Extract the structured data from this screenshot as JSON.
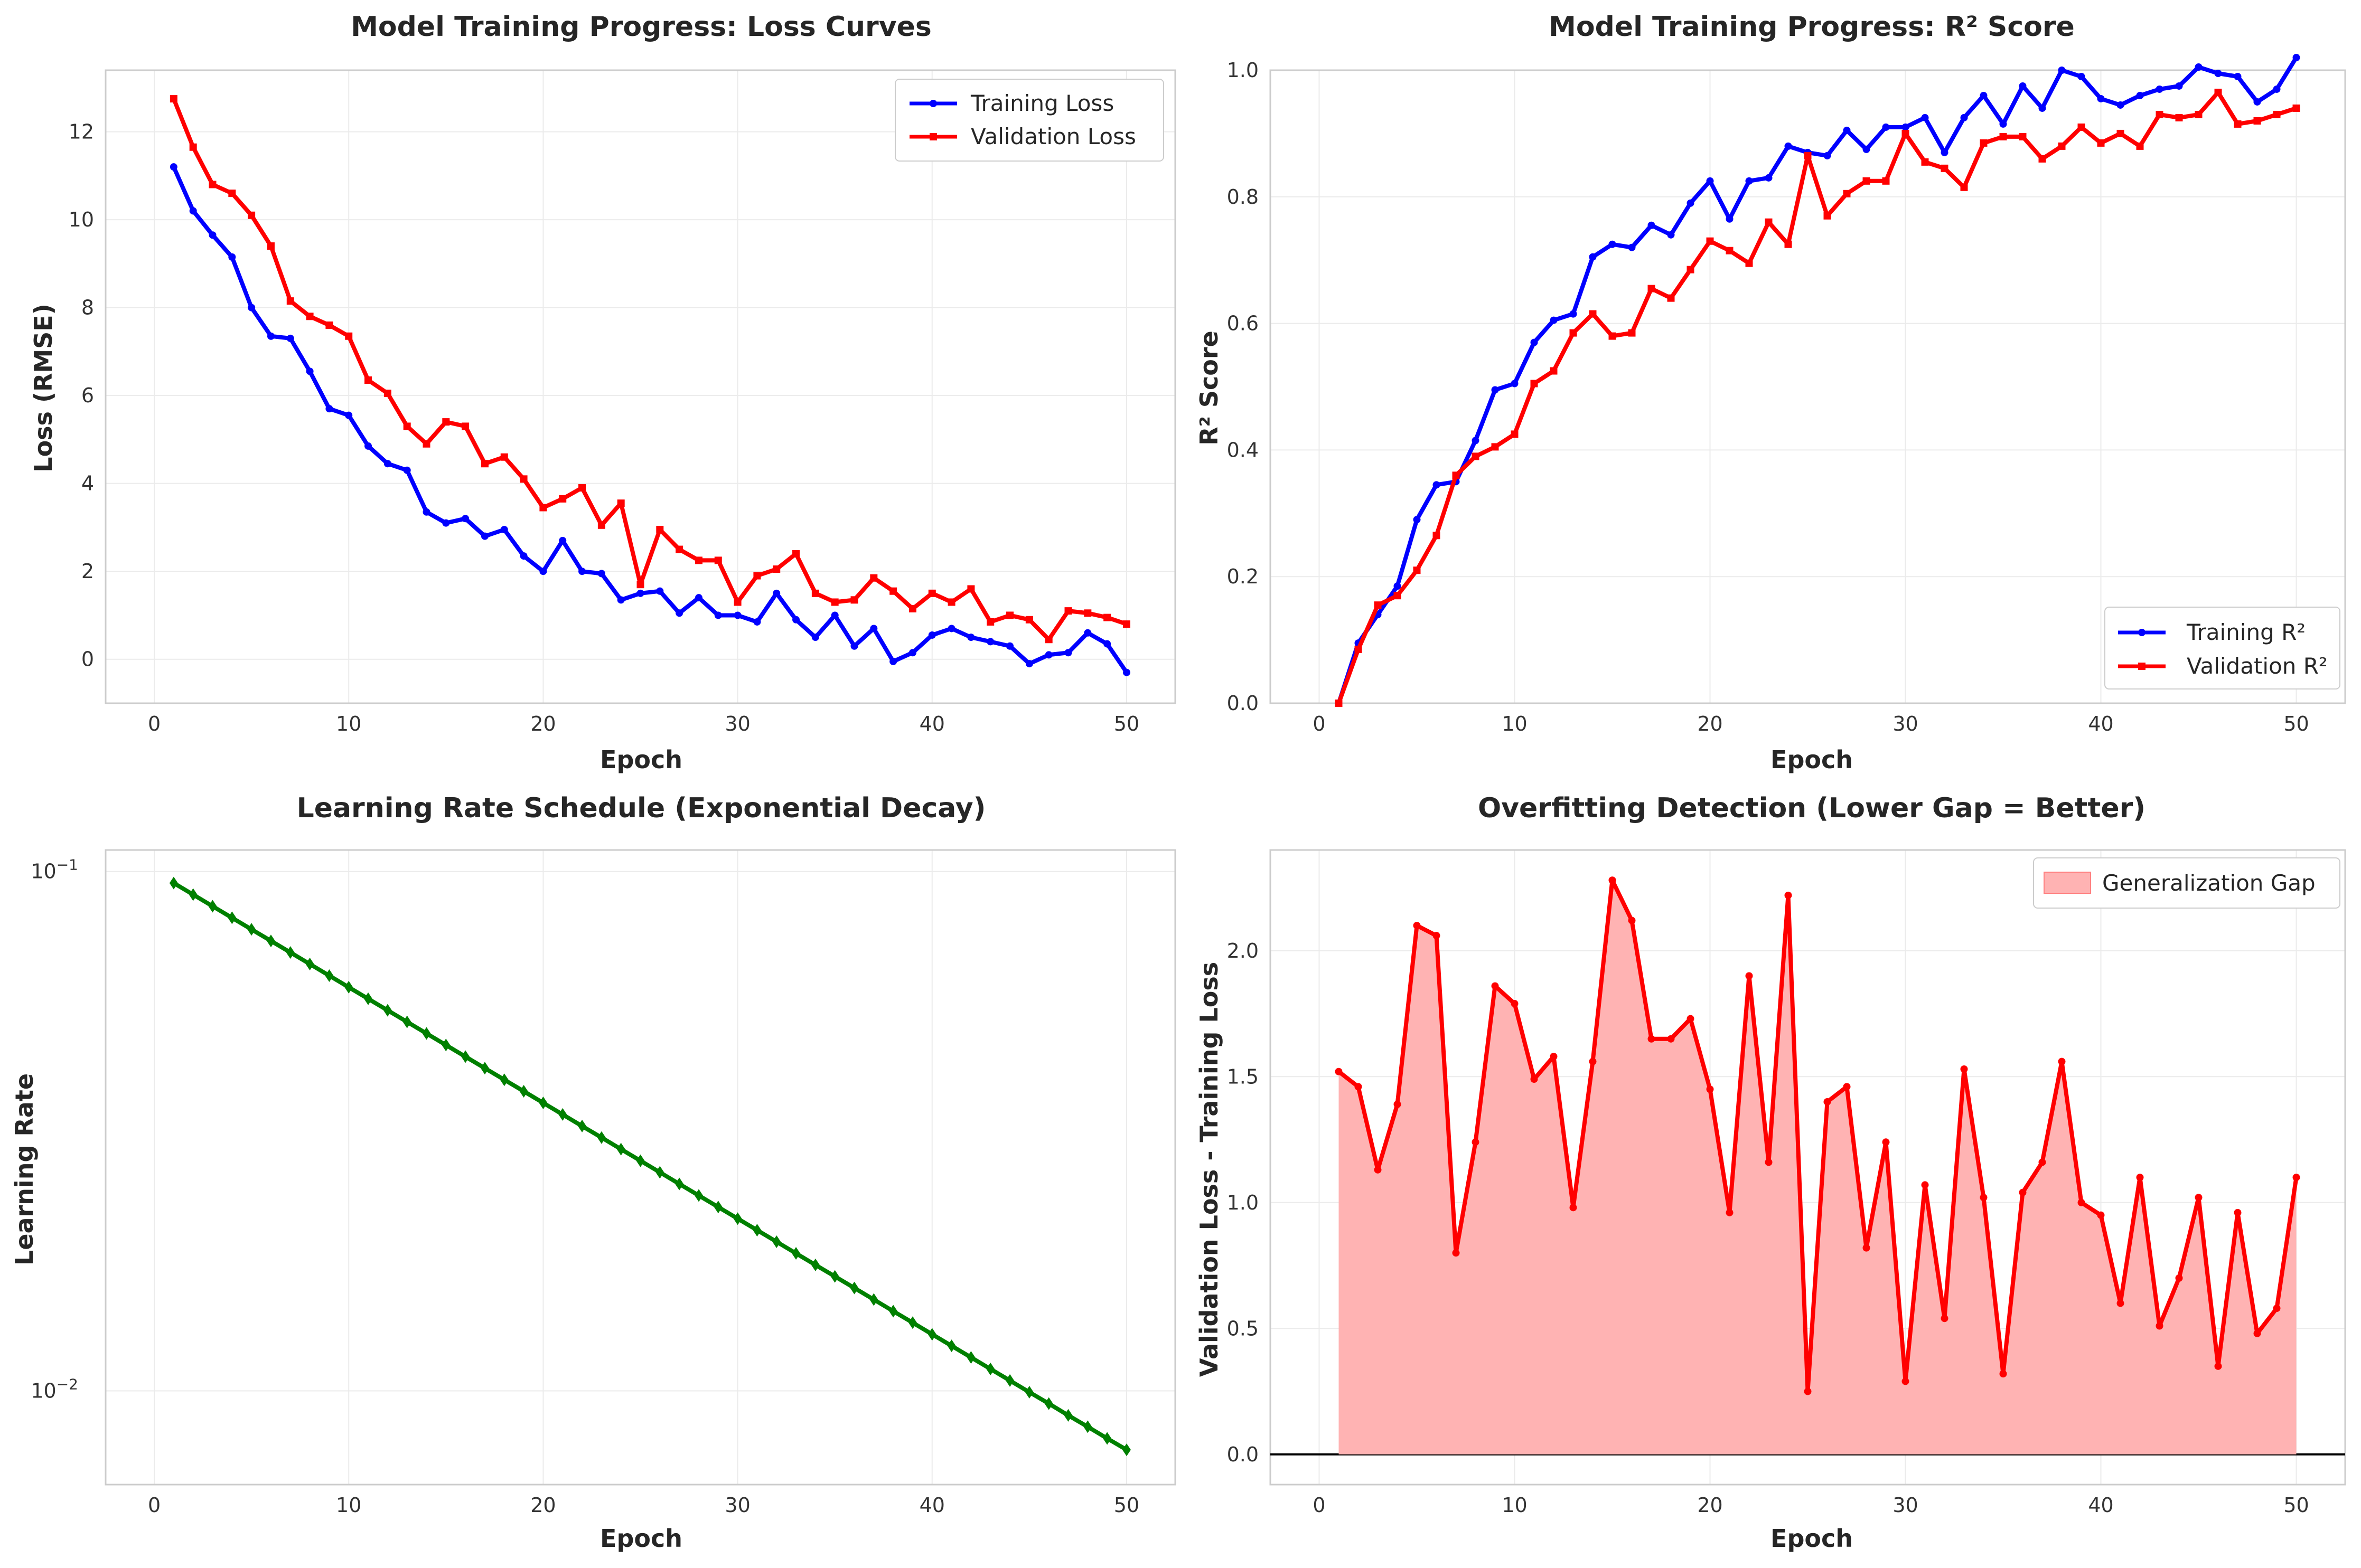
{
  "figure": {
    "background": "#ffffff",
    "grid_color": "#ebebeb",
    "spine_color": "#cccccc"
  },
  "chart_data": [
    {
      "type": "line",
      "title": "Model Training Progress: Loss Curves",
      "xlabel": "Epoch",
      "ylabel": "Loss (RMSE)",
      "xlim": [
        -2.5,
        52.5
      ],
      "ylim": [
        -1,
        13.4
      ],
      "xticks": [
        0,
        10,
        20,
        30,
        40,
        50
      ],
      "yticks": [
        0,
        2,
        4,
        6,
        8,
        10,
        12
      ],
      "grid": true,
      "legend": "top-right",
      "x": [
        1,
        2,
        3,
        4,
        5,
        6,
        7,
        8,
        9,
        10,
        11,
        12,
        13,
        14,
        15,
        16,
        17,
        18,
        19,
        20,
        21,
        22,
        23,
        24,
        25,
        26,
        27,
        28,
        29,
        30,
        31,
        32,
        33,
        34,
        35,
        36,
        37,
        38,
        39,
        40,
        41,
        42,
        43,
        44,
        45,
        46,
        47,
        48,
        49,
        50
      ],
      "series": [
        {
          "name": "Training Loss",
          "color": "#0000ff",
          "marker": "circle",
          "values": [
            11.2,
            10.2,
            9.65,
            9.15,
            8.0,
            7.35,
            7.3,
            6.55,
            5.7,
            5.55,
            4.85,
            4.45,
            4.3,
            3.35,
            3.1,
            3.2,
            2.8,
            2.95,
            2.35,
            2.0,
            2.7,
            2.0,
            1.95,
            1.35,
            1.5,
            1.55,
            1.05,
            1.4,
            1.0,
            1.0,
            0.85,
            1.5,
            0.9,
            0.5,
            1.0,
            0.3,
            0.7,
            -0.05,
            0.15,
            0.55,
            0.7,
            0.5,
            0.4,
            0.3,
            -0.1,
            0.1,
            0.15,
            0.6,
            0.35,
            -0.3
          ]
        },
        {
          "name": "Validation Loss",
          "color": "#ff0000",
          "marker": "square",
          "values": [
            12.75,
            11.65,
            10.8,
            10.6,
            10.1,
            9.4,
            8.15,
            7.8,
            7.6,
            7.35,
            6.35,
            6.05,
            5.3,
            4.9,
            5.4,
            5.3,
            4.45,
            4.6,
            4.1,
            3.45,
            3.65,
            3.9,
            3.05,
            3.55,
            1.7,
            2.95,
            2.5,
            2.25,
            2.25,
            1.3,
            1.9,
            2.05,
            2.4,
            1.5,
            1.3,
            1.35,
            1.85,
            1.55,
            1.15,
            1.5,
            1.3,
            1.6,
            0.85,
            1.0,
            0.9,
            0.45,
            1.1,
            1.05,
            0.95,
            0.8
          ]
        }
      ]
    },
    {
      "type": "line",
      "title": "Model Training Progress: R² Score",
      "xlabel": "Epoch",
      "ylabel": "R² Score",
      "xlim": [
        -2.5,
        52.5
      ],
      "ylim": [
        0,
        1.0
      ],
      "xticks": [
        0,
        10,
        20,
        30,
        40,
        50
      ],
      "yticks": [
        0.0,
        0.2,
        0.4,
        0.6,
        0.8,
        1.0
      ],
      "grid": true,
      "legend": "bottom-right",
      "x": [
        1,
        2,
        3,
        4,
        5,
        6,
        7,
        8,
        9,
        10,
        11,
        12,
        13,
        14,
        15,
        16,
        17,
        18,
        19,
        20,
        21,
        22,
        23,
        24,
        25,
        26,
        27,
        28,
        29,
        30,
        31,
        32,
        33,
        34,
        35,
        36,
        37,
        38,
        39,
        40,
        41,
        42,
        43,
        44,
        45,
        46,
        47,
        48,
        49,
        50
      ],
      "series": [
        {
          "name": "Training R²",
          "color": "#0000ff",
          "marker": "circle",
          "values": [
            0.0,
            0.095,
            0.14,
            0.185,
            0.29,
            0.345,
            0.35,
            0.415,
            0.495,
            0.505,
            0.57,
            0.605,
            0.615,
            0.705,
            0.725,
            0.72,
            0.755,
            0.74,
            0.79,
            0.825,
            0.765,
            0.825,
            0.83,
            0.88,
            0.87,
            0.865,
            0.905,
            0.875,
            0.91,
            0.91,
            0.925,
            0.87,
            0.925,
            0.96,
            0.915,
            0.975,
            0.94,
            1.0,
            0.99,
            0.955,
            0.945,
            0.96,
            0.97,
            0.975,
            1.005,
            0.995,
            0.99,
            0.95,
            0.97,
            1.02
          ]
        },
        {
          "name": "Validation R²",
          "color": "#ff0000",
          "marker": "square",
          "values": [
            0.0,
            0.085,
            0.155,
            0.17,
            0.21,
            0.265,
            0.36,
            0.39,
            0.405,
            0.425,
            0.505,
            0.525,
            0.585,
            0.615,
            0.58,
            0.585,
            0.655,
            0.64,
            0.685,
            0.73,
            0.715,
            0.695,
            0.76,
            0.725,
            0.865,
            0.77,
            0.805,
            0.825,
            0.825,
            0.9,
            0.855,
            0.845,
            0.815,
            0.885,
            0.895,
            0.895,
            0.86,
            0.88,
            0.91,
            0.885,
            0.9,
            0.88,
            0.93,
            0.925,
            0.93,
            0.965,
            0.915,
            0.92,
            0.93,
            0.94
          ]
        }
      ]
    },
    {
      "type": "line",
      "title": "Learning Rate Schedule (Exponential Decay)",
      "xlabel": "Epoch",
      "ylabel": "Learning Rate",
      "yscale": "log",
      "xlim": [
        -2.5,
        52.5
      ],
      "ylim": [
        0.0066,
        0.11
      ],
      "xticks": [
        0,
        10,
        20,
        30,
        40,
        50
      ],
      "yticks": [
        0.01,
        0.1
      ],
      "ytick_labels": [
        {
          "base": "10",
          "exp": "−2"
        },
        {
          "base": "10",
          "exp": "−1"
        }
      ],
      "grid": true,
      "x": [
        1,
        2,
        3,
        4,
        5,
        6,
        7,
        8,
        9,
        10,
        11,
        12,
        13,
        14,
        15,
        16,
        17,
        18,
        19,
        20,
        21,
        22,
        23,
        24,
        25,
        26,
        27,
        28,
        29,
        30,
        31,
        32,
        33,
        34,
        35,
        36,
        37,
        38,
        39,
        40,
        41,
        42,
        43,
        44,
        45,
        46,
        47,
        48,
        49,
        50
      ],
      "series": [
        {
          "color": "#008000",
          "marker": "diamond",
          "values": [
            0.095,
            0.09025,
            0.08574,
            0.08145,
            0.07738,
            0.07351,
            0.06983,
            0.06634,
            0.06302,
            0.05987,
            0.05688,
            0.05404,
            0.05133,
            0.04877,
            0.04633,
            0.04401,
            0.04181,
            0.03972,
            0.03774,
            0.03585,
            0.03406,
            0.03235,
            0.03074,
            0.0292,
            0.02774,
            0.02635,
            0.02503,
            0.02378,
            0.02259,
            0.02146,
            0.02039,
            0.01937,
            0.0184,
            0.01748,
            0.01661,
            0.01578,
            0.01499,
            0.01424,
            0.01353,
            0.01285,
            0.01221,
            0.0116,
            0.01102,
            0.01047,
            0.00994,
            0.00945,
            0.00897,
            0.00853,
            0.0081,
            0.0077
          ]
        }
      ]
    },
    {
      "type": "area",
      "title": "Overfitting Detection (Lower Gap = Better)",
      "xlabel": "Epoch",
      "ylabel": "Validation Loss - Training Loss",
      "xlim": [
        -2.5,
        52.5
      ],
      "ylim": [
        -0.12,
        2.4
      ],
      "xticks": [
        0,
        10,
        20,
        30,
        40,
        50
      ],
      "yticks": [
        0.0,
        0.5,
        1.0,
        1.5,
        2.0
      ],
      "grid": true,
      "legend": "top-right",
      "hline": 0,
      "x": [
        1,
        2,
        3,
        4,
        5,
        6,
        7,
        8,
        9,
        10,
        11,
        12,
        13,
        14,
        15,
        16,
        17,
        18,
        19,
        20,
        21,
        22,
        23,
        24,
        25,
        26,
        27,
        28,
        29,
        30,
        31,
        32,
        33,
        34,
        35,
        36,
        37,
        38,
        39,
        40,
        41,
        42,
        43,
        44,
        45,
        46,
        47,
        48,
        49,
        50
      ],
      "series": [
        {
          "name": "Generalization Gap",
          "color": "#ff0000",
          "fill": "#ffb3b3",
          "marker": "circle",
          "values": [
            1.52,
            1.46,
            1.13,
            1.39,
            2.1,
            2.06,
            0.8,
            1.24,
            1.86,
            1.79,
            1.49,
            1.58,
            0.98,
            1.56,
            2.28,
            2.12,
            1.65,
            1.65,
            1.73,
            1.45,
            0.96,
            1.9,
            1.16,
            2.22,
            0.25,
            1.4,
            1.46,
            0.82,
            1.24,
            0.29,
            1.07,
            0.54,
            1.53,
            1.02,
            0.32,
            1.04,
            1.16,
            1.56,
            1.0,
            0.95,
            0.6,
            1.1,
            0.51,
            0.7,
            1.02,
            0.35,
            0.96,
            0.48,
            0.58,
            1.1
          ]
        }
      ]
    }
  ]
}
